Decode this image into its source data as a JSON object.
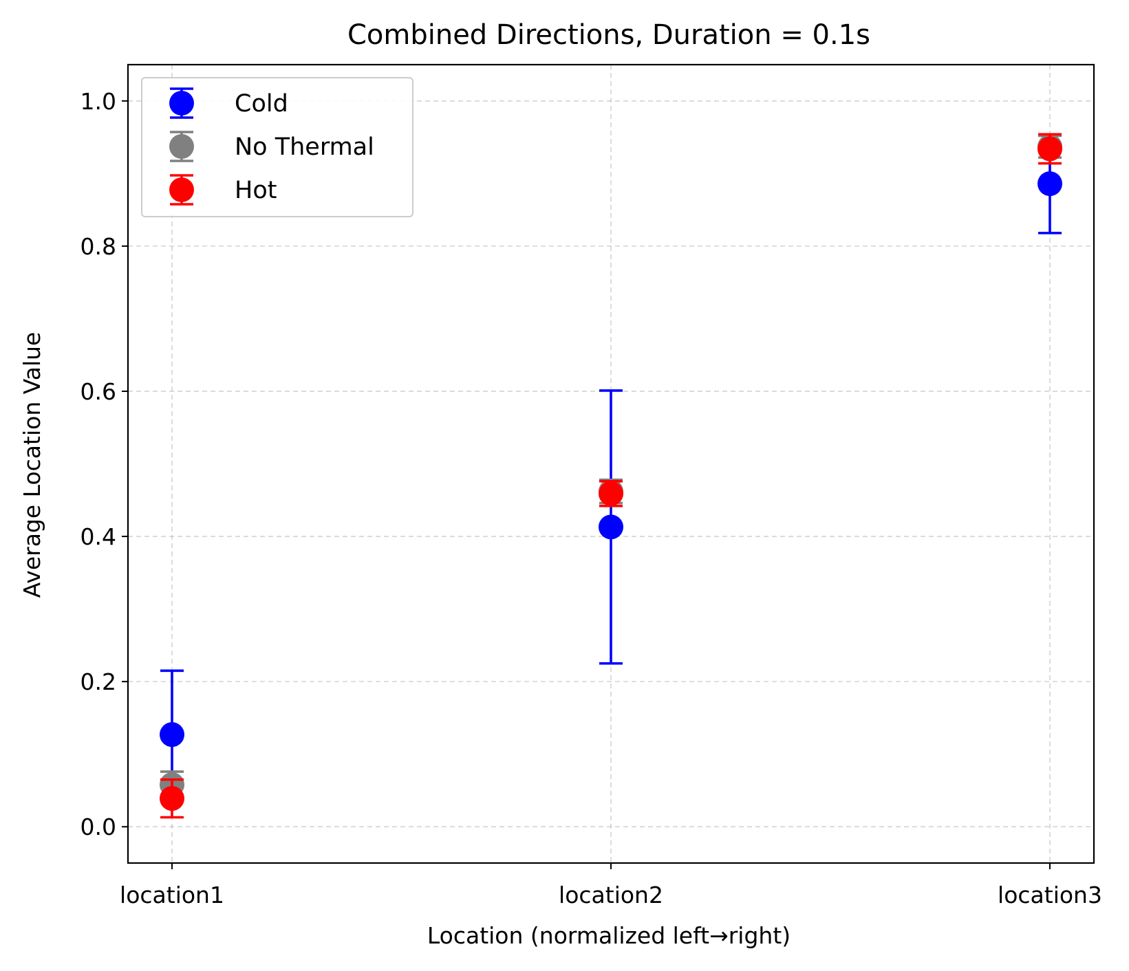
{
  "chart_data": {
    "type": "scatter",
    "title": "Combined Directions, Duration = 0.1s",
    "xlabel": "Location (normalized left→right)",
    "ylabel": "Average Location Value",
    "categories": [
      "location1",
      "location2",
      "location3"
    ],
    "ylim": [
      -0.05,
      1.05
    ],
    "yticks": [
      "0.0",
      "0.2",
      "0.4",
      "0.6",
      "0.8",
      "1.0"
    ],
    "ytick_values": [
      0.0,
      0.2,
      0.4,
      0.6,
      0.8,
      1.0
    ],
    "grid": true,
    "legend_position": "top-left",
    "series": [
      {
        "name": "Cold",
        "color": "#0000ff",
        "values": [
          0.127,
          0.413,
          0.886
        ],
        "errors": [
          0.088,
          0.188,
          0.068
        ]
      },
      {
        "name": "No Thermal",
        "color": "#808080",
        "values": [
          0.058,
          0.462,
          0.937
        ],
        "errors": [
          0.018,
          0.016,
          0.015
        ]
      },
      {
        "name": "Hot",
        "color": "#ff0000",
        "values": [
          0.039,
          0.459,
          0.934
        ],
        "errors": [
          0.026,
          0.017,
          0.02
        ]
      }
    ]
  }
}
